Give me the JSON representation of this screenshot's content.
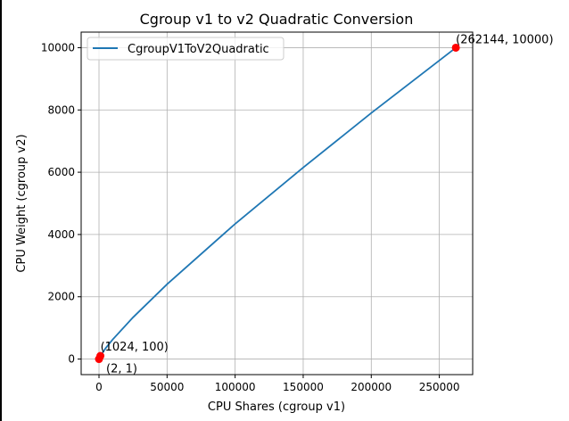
{
  "chart_data": {
    "type": "line",
    "title": "Cgroup v1 to v2 Quadratic Conversion",
    "xlabel": "CPU Shares (cgroup v1)",
    "ylabel": "CPU Weight (cgroup v2)",
    "xlim": [
      -13105,
      274500
    ],
    "ylim": [
      -500,
      10500
    ],
    "xticks": [
      0,
      50000,
      100000,
      150000,
      200000,
      250000
    ],
    "yticks": [
      0,
      2000,
      4000,
      6000,
      8000,
      10000
    ],
    "grid": true,
    "legend": "top-left",
    "series": [
      {
        "name": "CgroupV1ToV2Quadratic",
        "color": "#1f77b4",
        "x": [
          2,
          1024,
          5000,
          10000,
          25000,
          50000,
          100000,
          150000,
          200000,
          250000,
          262144
        ],
        "y": [
          1,
          100,
          355,
          626,
          1340,
          2403,
          4341,
          6152,
          7902,
          9588,
          10000
        ]
      }
    ],
    "points": {
      "color": "#ff0000",
      "items": [
        {
          "x": 2,
          "y": 1,
          "label": "(2, 1)"
        },
        {
          "x": 1024,
          "y": 100,
          "label": "(1024, 100)"
        },
        {
          "x": 262144,
          "y": 10000,
          "label": "(262144, 10000)"
        }
      ]
    }
  }
}
